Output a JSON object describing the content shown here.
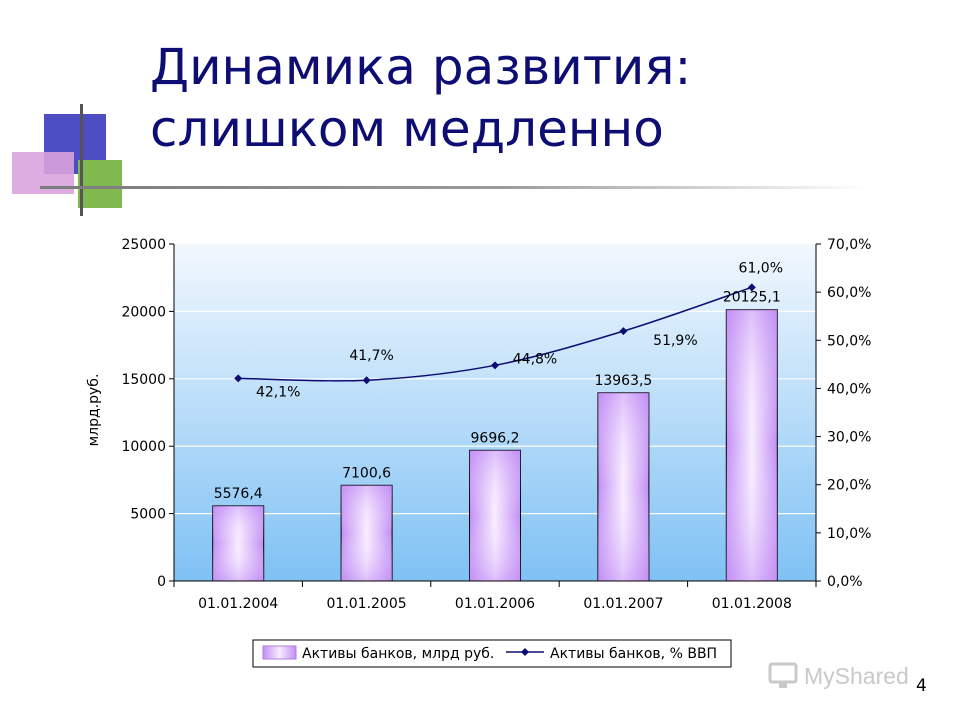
{
  "slide": {
    "title_line1": "Динамика развития:",
    "title_line2": "слишком медленно",
    "page_number": "4",
    "watermark_text": "MyShared"
  },
  "colors": {
    "title": "#0d0d73",
    "bar_fill_light": "#f7ecff",
    "bar_fill_dark": "#c28ef5",
    "plot_bg_top": "#f2f8fe",
    "plot_bg_bottom": "#7fc1f4",
    "line": "#0d0d73",
    "deco_blue": "#4d4dc4",
    "deco_green": "#80b94d",
    "deco_pink": "#d9a3de"
  },
  "chart_data": {
    "type": "bar",
    "categories": [
      "01.01.2004",
      "01.01.2005",
      "01.01.2006",
      "01.01.2007",
      "01.01.2008"
    ],
    "series": [
      {
        "name": "Активы банков, млрд руб.",
        "type": "bar",
        "axis": "left",
        "values": [
          5576.4,
          7100.6,
          9696.2,
          13963.5,
          20125.1
        ],
        "labels": [
          "5576,4",
          "7100,6",
          "9696,2",
          "13963,5",
          "20125,1"
        ]
      },
      {
        "name": "Активы банков, % ВВП",
        "type": "line",
        "axis": "right",
        "values": [
          42.1,
          41.7,
          44.8,
          51.9,
          61.0
        ],
        "labels": [
          "42,1%",
          "41,7%",
          "44,8%",
          "51,9%",
          "61,0%"
        ]
      }
    ],
    "ylabel": "млрд.руб.",
    "ylim": [
      0,
      25000
    ],
    "yticks": [
      "0",
      "5000",
      "10000",
      "15000",
      "20000",
      "25000"
    ],
    "y2lim": [
      0,
      70
    ],
    "y2ticks": [
      "0,0%",
      "10,0%",
      "20,0%",
      "30,0%",
      "40,0%",
      "50,0%",
      "60,0%",
      "70,0%"
    ],
    "grid": true,
    "legend_position": "bottom"
  }
}
